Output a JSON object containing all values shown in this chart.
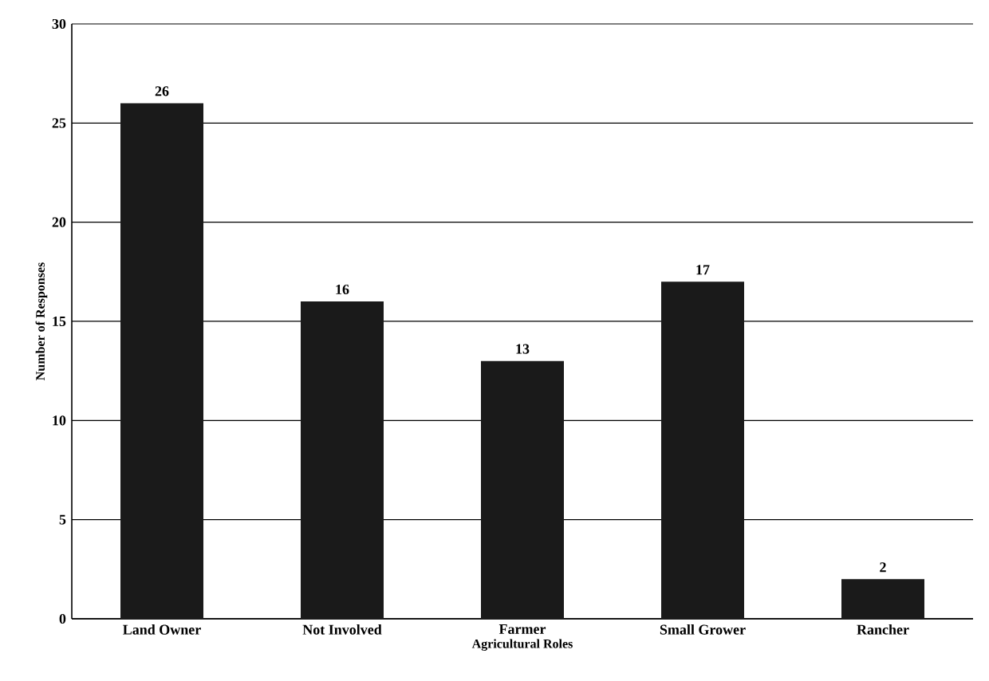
{
  "chart_data": {
    "type": "bar",
    "xlabel": "Agricultural Roles",
    "ylabel": "Number of Responses",
    "categories": [
      "Land Owner",
      "Not Involved",
      "Farmer",
      "Small Grower",
      "Rancher"
    ],
    "values": [
      26,
      16,
      13,
      17,
      2
    ],
    "color": "#1a1a1a",
    "ylim": [
      0,
      30
    ],
    "yticks": [
      0,
      5,
      10,
      15,
      20,
      25,
      30
    ],
    "grid": "y",
    "data_labels": true
  }
}
